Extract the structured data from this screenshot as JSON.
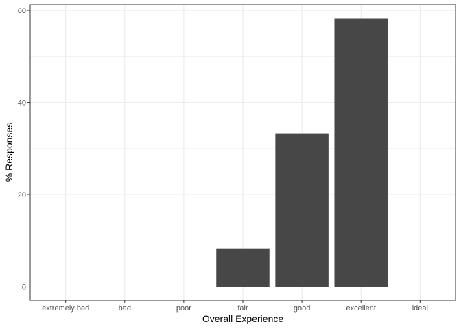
{
  "chart_data": {
    "type": "bar",
    "categories": [
      "extremely bad",
      "bad",
      "poor",
      "fair",
      "good",
      "excellent",
      "ideal"
    ],
    "values": [
      0,
      0,
      0,
      8.3,
      33.3,
      58.3,
      0
    ],
    "xlabel": "Overall Experience",
    "ylabel": "% Responses",
    "ylim": [
      -2.9,
      61.2
    ],
    "yticks": [
      0,
      20,
      40,
      60
    ],
    "grid": true,
    "bar_color": "#474747",
    "grid_color": "#ebebeb",
    "panel_border_color": "#333333"
  }
}
